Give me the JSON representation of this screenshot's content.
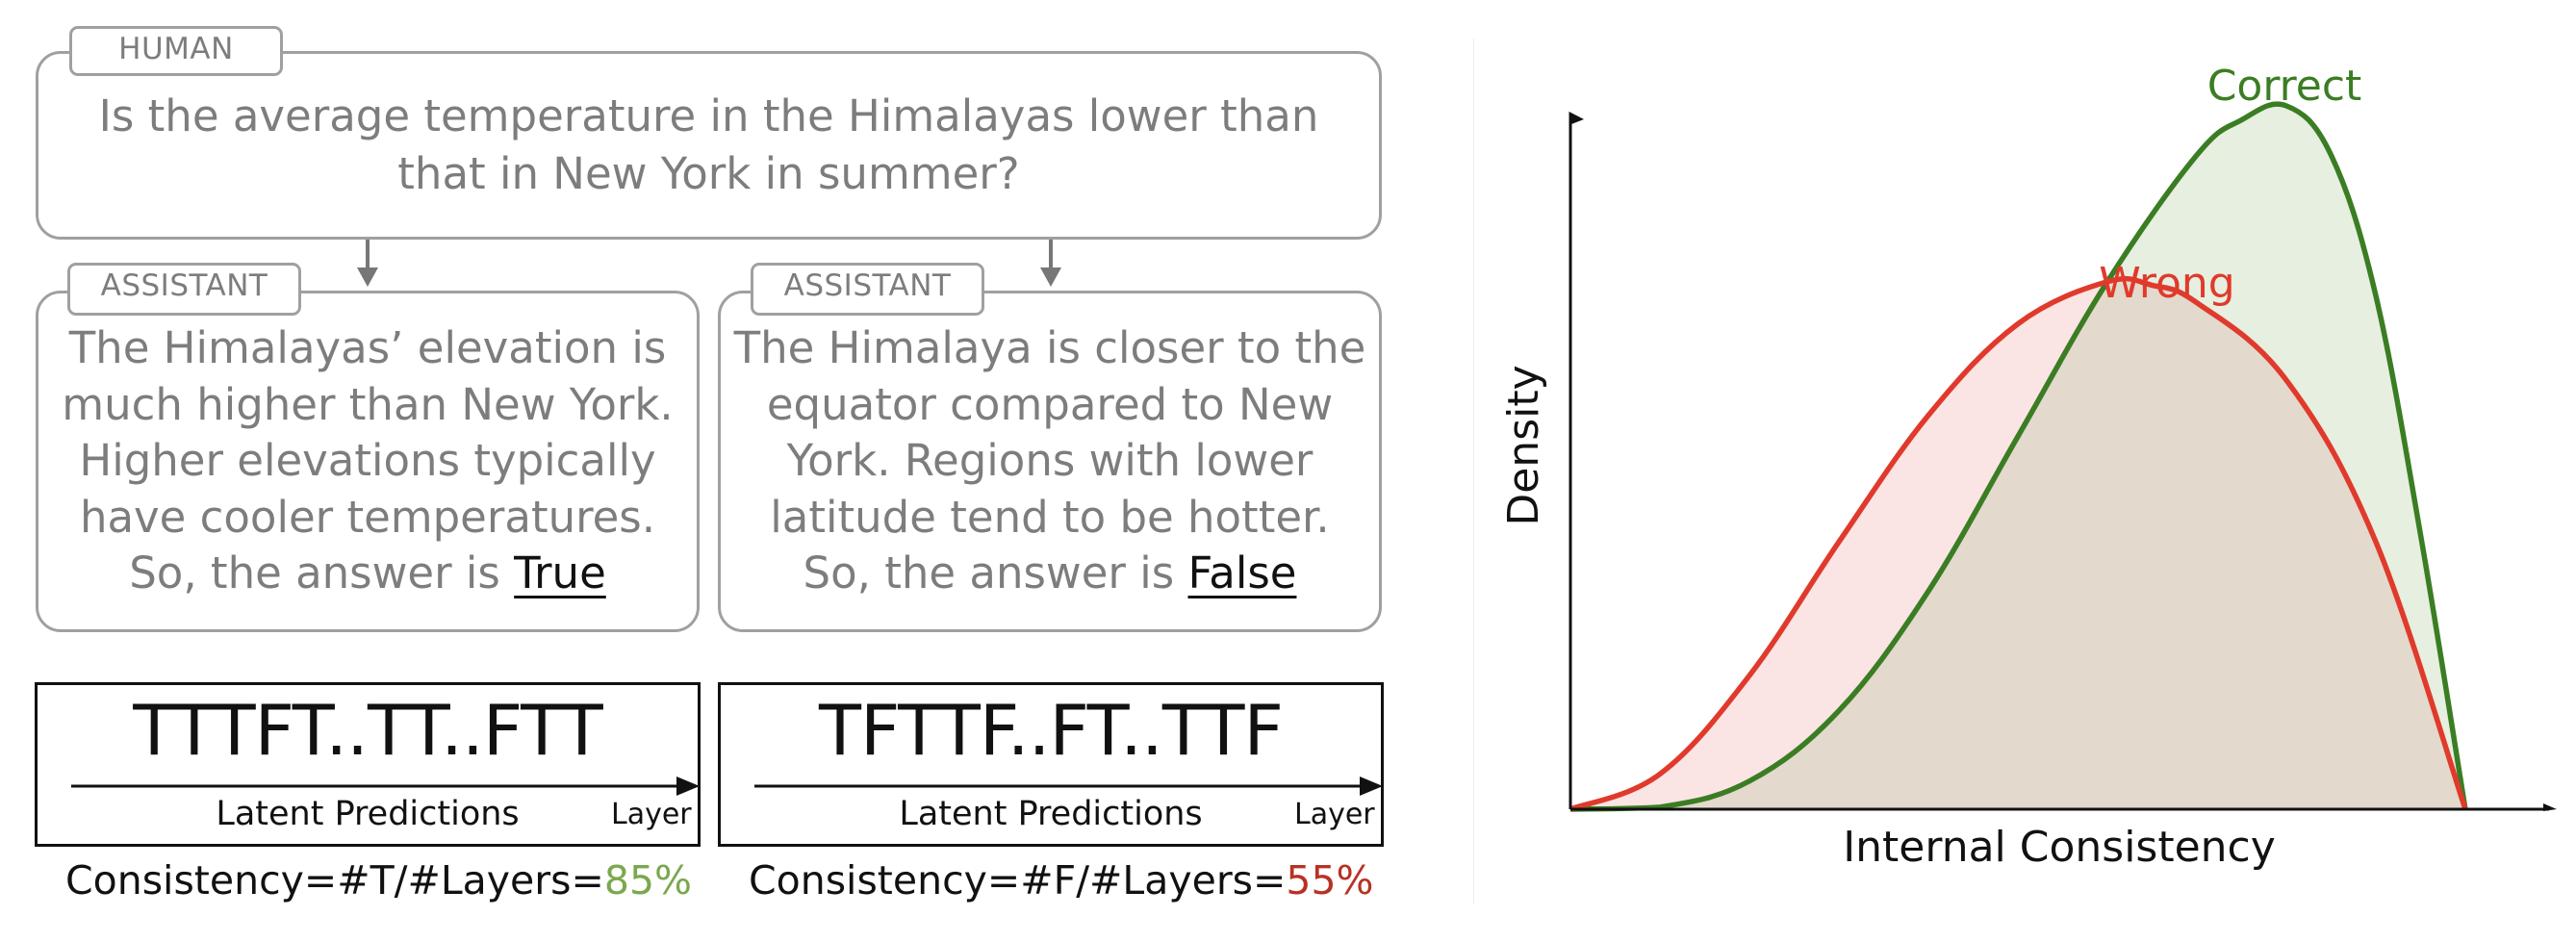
{
  "human": {
    "tag": "HUMAN",
    "question_line1": "Is the average temperature in the Himalayas lower than",
    "question_line2": "that in New York in summer?"
  },
  "assistant_left": {
    "tag": "ASSISTANT",
    "lines": [
      "The Himalayas’ elevation is",
      "much higher than New York.",
      "Higher elevations typically",
      "have cooler temperatures."
    ],
    "answer_prefix": "So, the answer is ",
    "answer": "True"
  },
  "assistant_right": {
    "tag": "ASSISTANT",
    "lines": [
      "The Himalaya is closer to the",
      "equator compared to New",
      "York. Regions with lower",
      "latitude tend to be hotter."
    ],
    "answer_prefix": "So, the answer is ",
    "answer": "False"
  },
  "predictions_left": {
    "sequence": "TTTFT..TT..FTT",
    "axis_label": "Latent Predictions",
    "layer_label": "Layer",
    "consistency_formula": "Consistency=#T/#Layers=",
    "consistency_value": "85%",
    "consistency_color": "#7aa84e"
  },
  "predictions_right": {
    "sequence": "TFTTF..FT..TTF",
    "axis_label": "Latent Predictions",
    "layer_label": "Layer",
    "consistency_formula": "Consistency=#F/#Layers=",
    "consistency_value": "55%",
    "consistency_color": "#b83224"
  },
  "chart_data": {
    "type": "area",
    "xlabel": "Internal Consistency",
    "ylabel": "Density",
    "x_range": [
      0,
      1
    ],
    "y_range": [
      0,
      1
    ],
    "ticks": false,
    "series": [
      {
        "name": "Correct",
        "color": "#3b7d23",
        "fill": "#e6efe0",
        "x": [
          0,
          0.1,
          0.2,
          0.3,
          0.4,
          0.5,
          0.6,
          0.7,
          0.75,
          0.8,
          0.85,
          0.9,
          0.95,
          1.0
        ],
        "y": [
          0,
          0.003,
          0.04,
          0.14,
          0.31,
          0.53,
          0.75,
          0.93,
          0.98,
          1.0,
          0.93,
          0.73,
          0.39,
          0
        ]
      },
      {
        "name": "Wrong",
        "color": "#e03a2c",
        "fill": "#fbe4e4",
        "x": [
          0,
          0.1,
          0.2,
          0.3,
          0.4,
          0.5,
          0.6,
          0.65,
          0.7,
          0.8,
          0.9,
          1.0
        ],
        "y": [
          0,
          0.05,
          0.19,
          0.38,
          0.56,
          0.69,
          0.75,
          0.745,
          0.72,
          0.61,
          0.38,
          0
        ]
      }
    ],
    "overlap_fill": "#e3d9cd"
  }
}
